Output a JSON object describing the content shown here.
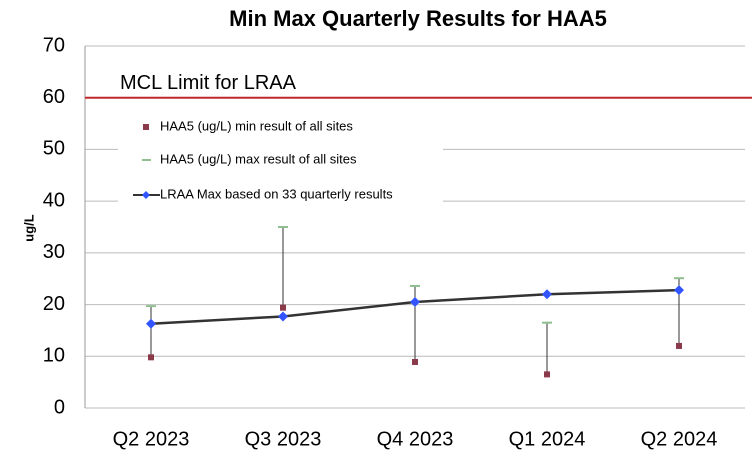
{
  "chart_data": {
    "type": "line",
    "title": "Min Max Quarterly Results for HAA5",
    "ylabel": "ug/L",
    "categories": [
      "Q2 2023",
      "Q3 2023",
      "Q4 2023",
      "Q1 2024",
      "Q2 2024"
    ],
    "series": [
      {
        "name": "HAA5 (ug/L) min result of all sites",
        "color": "#8b3a4a",
        "values": [
          9.8,
          19.4,
          8.9,
          6.5,
          12.0
        ]
      },
      {
        "name": "HAA5 (ug/L) max result of all sites",
        "color": "#8fbf8f",
        "values": [
          19.7,
          35.0,
          23.6,
          16.5,
          25.1
        ]
      },
      {
        "name": "LRAA Max based on 33 quarterly results",
        "color": "#333333",
        "marker_color": "#3355ff",
        "values": [
          16.3,
          17.7,
          20.5,
          22.0,
          22.8
        ]
      }
    ],
    "mcl_limit": 60,
    "mcl_label": "MCL Limit for LRAA",
    "mcl_color": "#c0282d",
    "ylim": [
      0,
      70
    ],
    "yticks": [
      0,
      10,
      20,
      30,
      40,
      50,
      60,
      70
    ],
    "grid": true
  }
}
